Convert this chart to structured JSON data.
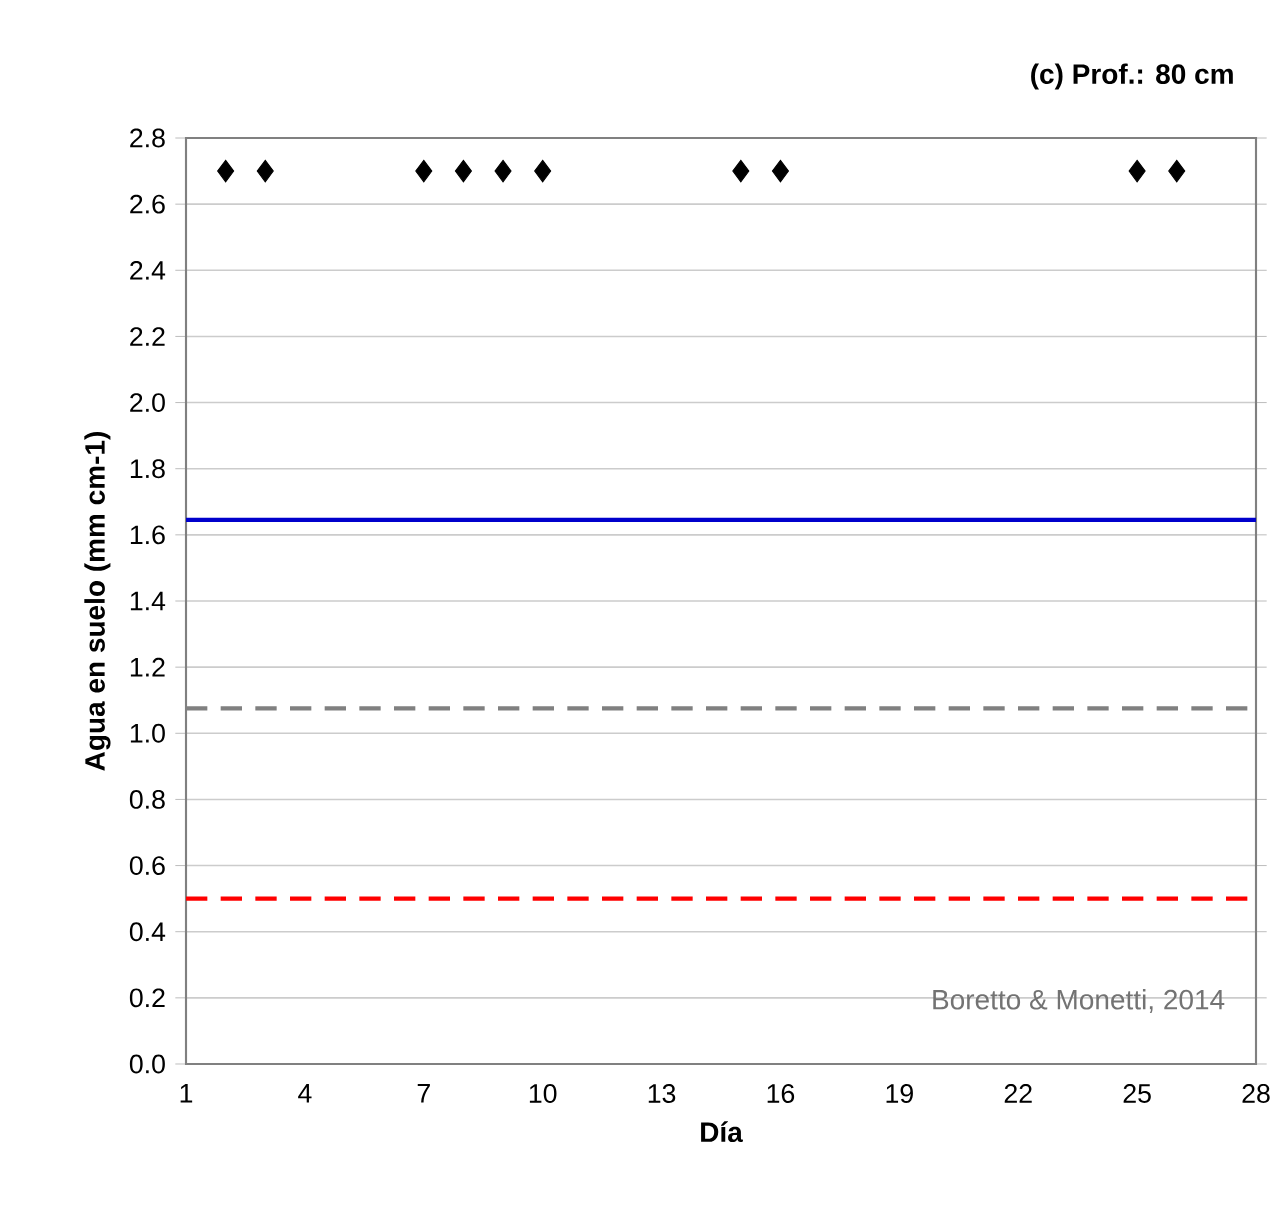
{
  "chart_data": {
    "type": "scatter",
    "title": "(c) Prof.: 80 cm",
    "xlabel": "Día",
    "ylabel": "Agua en suelo (mm cm-1)",
    "x": [
      2,
      3,
      7,
      8,
      9,
      10,
      15,
      16,
      25,
      26
    ],
    "series": [
      {
        "color": "#000000",
        "values": [
          2.7,
          2.7,
          2.7,
          2.7,
          2.7,
          2.7,
          2.7,
          2.7,
          2.7,
          2.7
        ]
      }
    ],
    "marker": "diamond",
    "xlim": [
      1,
      28
    ],
    "xticks": [
      1,
      4,
      7,
      10,
      13,
      16,
      19,
      22,
      25,
      28
    ],
    "ylim": [
      0,
      2.8
    ],
    "yticks": [
      {
        "value": 0,
        "label": "0.0"
      },
      {
        "value": 0.2,
        "label": "0.2"
      },
      {
        "value": 0.4,
        "label": "0.4"
      },
      {
        "value": 0.6,
        "label": "0.6"
      },
      {
        "value": 0.8,
        "label": "0.8"
      },
      {
        "value": 1.0,
        "label": "1.0"
      },
      {
        "value": 1.2,
        "label": "1.2"
      },
      {
        "value": 1.4,
        "label": "1.4"
      },
      {
        "value": 1.6,
        "label": "1.6"
      },
      {
        "value": 1.8,
        "label": "1.8"
      },
      {
        "value": 2.0,
        "label": "2.0"
      },
      {
        "value": 2.2,
        "label": "2.2"
      },
      {
        "value": 2.4,
        "label": "2.4"
      },
      {
        "value": 2.6,
        "label": "2.6"
      },
      {
        "value": 2.8,
        "label": "2.8"
      }
    ],
    "ref_lines": [
      {
        "axis": "y",
        "value": 1.645,
        "color": "#0000cc",
        "line_style": "solid"
      },
      {
        "axis": "y",
        "value": 1.075,
        "color": "#808080",
        "line_style": "dashed"
      },
      {
        "axis": "y",
        "value": 0.5,
        "color": "#ff0000",
        "line_style": "dashed"
      }
    ],
    "grid": "y",
    "annotations": [
      "Boretto & Monetti, 2014"
    ]
  }
}
